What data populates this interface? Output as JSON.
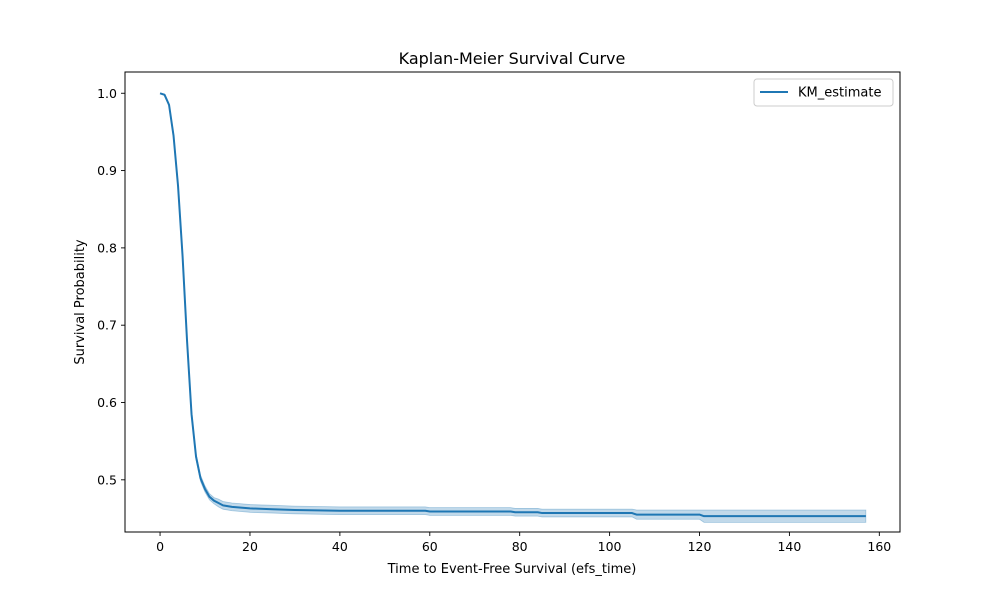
{
  "chart_data": {
    "type": "line",
    "title": "Kaplan-Meier Survival Curve",
    "xlabel": "Time to Event-Free Survival (efs_time)",
    "ylabel": "Survival Probability",
    "xlim": [
      -7.8,
      164.6
    ],
    "ylim": [
      0.4325,
      1.0275
    ],
    "xticks": [
      0,
      20,
      40,
      60,
      80,
      100,
      120,
      140,
      160
    ],
    "yticks": [
      0.5,
      0.6,
      0.7,
      0.8,
      0.9,
      1.0
    ],
    "xtick_labels": [
      "0",
      "20",
      "40",
      "60",
      "80",
      "100",
      "120",
      "140",
      "160"
    ],
    "ytick_labels": [
      "0.5",
      "0.6",
      "0.7",
      "0.8",
      "0.9",
      "1.0"
    ],
    "grid": false,
    "legend": {
      "position": "top-right",
      "entries": [
        "KM_estimate"
      ]
    },
    "series": [
      {
        "name": "KM_estimate",
        "color": "#1f77b4",
        "ci_color": "#1f77b4",
        "x": [
          0,
          1,
          2,
          3,
          4,
          5,
          6,
          7,
          8,
          9,
          10,
          11,
          12,
          13,
          14,
          16,
          18,
          20,
          25,
          30,
          40,
          50,
          59,
          60,
          78,
          79,
          84,
          85,
          105,
          106,
          120,
          121,
          157
        ],
        "y": [
          1.0,
          0.998,
          0.985,
          0.945,
          0.88,
          0.79,
          0.68,
          0.585,
          0.53,
          0.502,
          0.488,
          0.478,
          0.473,
          0.47,
          0.467,
          0.465,
          0.464,
          0.463,
          0.462,
          0.461,
          0.46,
          0.46,
          0.46,
          0.459,
          0.459,
          0.458,
          0.458,
          0.457,
          0.457,
          0.455,
          0.455,
          0.453,
          0.453
        ],
        "ci_lower": [
          1.0,
          0.997,
          0.983,
          0.942,
          0.876,
          0.786,
          0.676,
          0.581,
          0.526,
          0.498,
          0.484,
          0.474,
          0.469,
          0.465,
          0.462,
          0.46,
          0.459,
          0.458,
          0.457,
          0.456,
          0.455,
          0.455,
          0.455,
          0.454,
          0.454,
          0.453,
          0.453,
          0.452,
          0.452,
          0.449,
          0.449,
          0.445,
          0.445
        ],
        "ci_upper": [
          1.0,
          0.999,
          0.987,
          0.948,
          0.884,
          0.794,
          0.684,
          0.589,
          0.534,
          0.506,
          0.492,
          0.482,
          0.477,
          0.475,
          0.472,
          0.47,
          0.469,
          0.468,
          0.467,
          0.466,
          0.465,
          0.465,
          0.465,
          0.464,
          0.464,
          0.463,
          0.463,
          0.462,
          0.462,
          0.461,
          0.461,
          0.461,
          0.461
        ]
      }
    ]
  }
}
